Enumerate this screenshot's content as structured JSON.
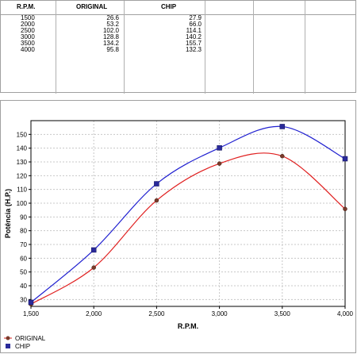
{
  "table": {
    "headers": [
      "R.P.M.",
      "ORIGINAL",
      "CHIP"
    ],
    "rows": [
      [
        "1500",
        "26.6",
        "27.9"
      ],
      [
        "2000",
        "53.2",
        "66.0"
      ],
      [
        "2500",
        "102.0",
        "114.1"
      ],
      [
        "3000",
        "128.8",
        "140.2"
      ],
      [
        "3500",
        "134.2",
        "155.7"
      ],
      [
        "4000",
        "95.8",
        "132.3"
      ]
    ]
  },
  "chart_data": {
    "type": "line",
    "xlabel": "R.P.M.",
    "ylabel": "Potência (H.P.)",
    "xlim": [
      1500,
      4000
    ],
    "ylim": [
      25,
      160
    ],
    "x_ticks": [
      1500,
      2000,
      2500,
      3000,
      3500,
      4000
    ],
    "x_tick_labels": [
      "1,500",
      "2,000",
      "2,500",
      "3,000",
      "3,500",
      "4,000"
    ],
    "y_ticks": [
      30,
      40,
      50,
      60,
      70,
      80,
      90,
      100,
      110,
      120,
      130,
      140,
      150
    ],
    "grid": true,
    "legend_position": "bottom-left",
    "series": [
      {
        "name": "ORIGINAL",
        "color": "#e02020",
        "marker": "circle",
        "x": [
          1500,
          2000,
          2500,
          3000,
          3500,
          4000
        ],
        "values": [
          26.6,
          53.2,
          102.0,
          128.8,
          134.2,
          95.8
        ]
      },
      {
        "name": "CHIP",
        "color": "#2020d0",
        "marker": "square",
        "x": [
          1500,
          2000,
          2500,
          3000,
          3500,
          4000
        ],
        "values": [
          27.9,
          66.0,
          114.1,
          140.2,
          155.7,
          132.3
        ]
      }
    ]
  }
}
